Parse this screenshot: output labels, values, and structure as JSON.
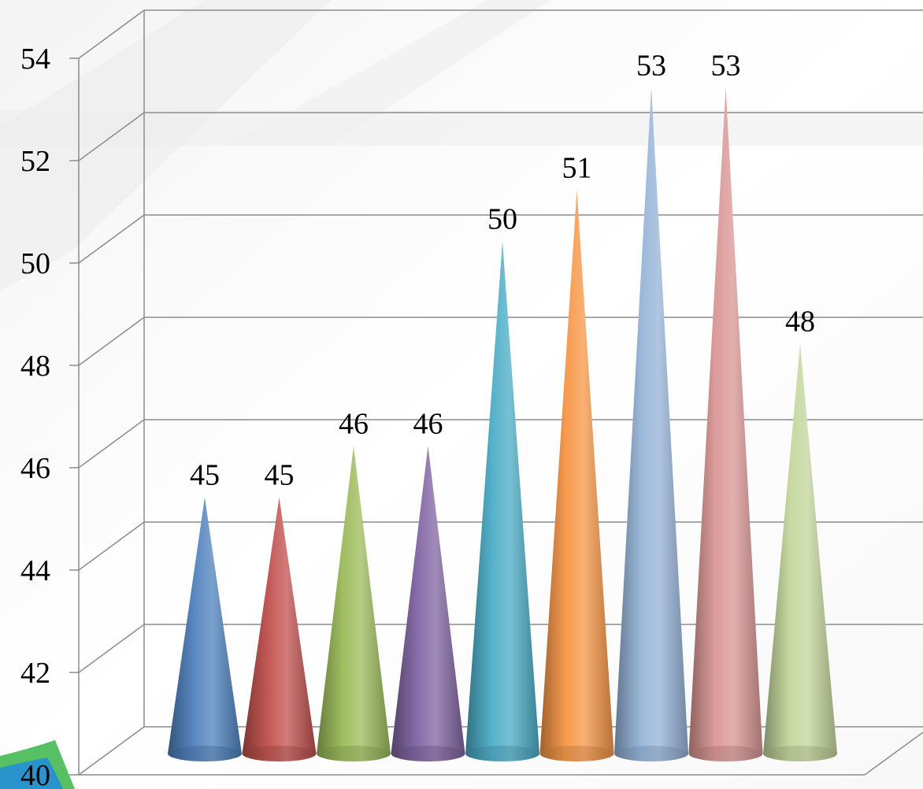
{
  "chart_data": {
    "type": "bar",
    "shape": "cone",
    "three_d": true,
    "title": "",
    "xlabel": "",
    "ylabel": "",
    "ylim": [
      40,
      54
    ],
    "y_ticks": [
      40,
      42,
      44,
      46,
      48,
      50,
      52,
      54
    ],
    "y_tick_labels": [
      "40",
      "42",
      "44",
      "46",
      "48",
      "50",
      "52",
      "54"
    ],
    "grid": true,
    "legend": "none",
    "values": [
      45,
      45,
      46,
      46,
      50,
      51,
      53,
      53,
      48
    ],
    "data_labels": [
      "45",
      "45",
      "46",
      "46",
      "50",
      "51",
      "53",
      "53",
      "48"
    ],
    "colors": [
      "#4f81bd",
      "#c0504d",
      "#9bbb59",
      "#8064a2",
      "#4bacc6",
      "#f79646",
      "#95b3d7",
      "#d99694",
      "#c3d69b"
    ]
  }
}
